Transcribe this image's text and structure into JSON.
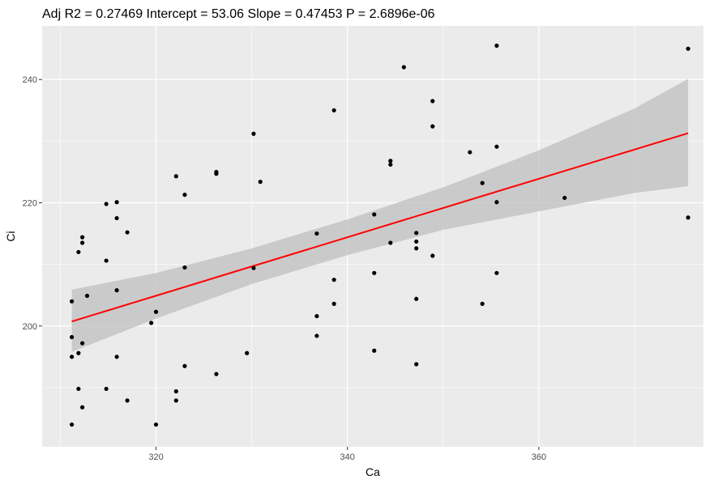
{
  "chart_data": {
    "type": "scatter",
    "title": "Adj R2 =  0.27469 Intercept = 53.06  Slope = 0.47453  P = 2.6896e-06",
    "xlabel": "Ca",
    "ylabel": "Ci",
    "xlim": [
      308.1,
      377.2
    ],
    "ylim": [
      180.4,
      248.7
    ],
    "x_ticks": [
      320,
      340,
      360
    ],
    "y_ticks": [
      200,
      220,
      240
    ],
    "grid": true,
    "background": "#ebebeb",
    "points": [
      {
        "x": 311.2,
        "y": 204.0
      },
      {
        "x": 311.2,
        "y": 198.2
      },
      {
        "x": 311.2,
        "y": 195.0
      },
      {
        "x": 311.2,
        "y": 184.0
      },
      {
        "x": 311.9,
        "y": 212.0
      },
      {
        "x": 311.9,
        "y": 195.6
      },
      {
        "x": 311.9,
        "y": 189.8
      },
      {
        "x": 312.3,
        "y": 214.4
      },
      {
        "x": 312.3,
        "y": 213.5
      },
      {
        "x": 312.3,
        "y": 197.2
      },
      {
        "x": 312.3,
        "y": 186.8
      },
      {
        "x": 312.8,
        "y": 204.9
      },
      {
        "x": 314.8,
        "y": 219.8
      },
      {
        "x": 314.8,
        "y": 210.6
      },
      {
        "x": 314.8,
        "y": 189.8
      },
      {
        "x": 315.9,
        "y": 220.1
      },
      {
        "x": 315.9,
        "y": 217.5
      },
      {
        "x": 315.9,
        "y": 205.8
      },
      {
        "x": 315.9,
        "y": 195.0
      },
      {
        "x": 317.0,
        "y": 215.2
      },
      {
        "x": 317.0,
        "y": 187.9
      },
      {
        "x": 319.5,
        "y": 200.5
      },
      {
        "x": 320.0,
        "y": 202.3
      },
      {
        "x": 320.0,
        "y": 184.0
      },
      {
        "x": 322.1,
        "y": 224.3
      },
      {
        "x": 322.1,
        "y": 189.4
      },
      {
        "x": 322.1,
        "y": 187.9
      },
      {
        "x": 323.0,
        "y": 221.3
      },
      {
        "x": 323.0,
        "y": 209.5
      },
      {
        "x": 323.0,
        "y": 193.5
      },
      {
        "x": 326.3,
        "y": 225.0
      },
      {
        "x": 326.3,
        "y": 224.7
      },
      {
        "x": 326.3,
        "y": 192.2
      },
      {
        "x": 329.5,
        "y": 195.6
      },
      {
        "x": 330.2,
        "y": 231.2
      },
      {
        "x": 330.2,
        "y": 209.4
      },
      {
        "x": 330.9,
        "y": 223.4
      },
      {
        "x": 336.8,
        "y": 215.0
      },
      {
        "x": 336.8,
        "y": 201.6
      },
      {
        "x": 336.8,
        "y": 198.4
      },
      {
        "x": 338.6,
        "y": 235.0
      },
      {
        "x": 338.6,
        "y": 207.5
      },
      {
        "x": 338.6,
        "y": 203.6
      },
      {
        "x": 342.8,
        "y": 218.1
      },
      {
        "x": 342.8,
        "y": 208.6
      },
      {
        "x": 342.8,
        "y": 196.0
      },
      {
        "x": 344.5,
        "y": 226.8
      },
      {
        "x": 344.5,
        "y": 226.2
      },
      {
        "x": 344.5,
        "y": 213.5
      },
      {
        "x": 345.9,
        "y": 242.0
      },
      {
        "x": 347.2,
        "y": 215.1
      },
      {
        "x": 347.2,
        "y": 213.7
      },
      {
        "x": 347.2,
        "y": 212.6
      },
      {
        "x": 347.2,
        "y": 204.4
      },
      {
        "x": 347.2,
        "y": 193.8
      },
      {
        "x": 348.9,
        "y": 236.5
      },
      {
        "x": 348.9,
        "y": 232.4
      },
      {
        "x": 348.9,
        "y": 211.4
      },
      {
        "x": 352.8,
        "y": 228.2
      },
      {
        "x": 354.1,
        "y": 223.2
      },
      {
        "x": 354.1,
        "y": 203.6
      },
      {
        "x": 355.6,
        "y": 245.5
      },
      {
        "x": 355.6,
        "y": 229.1
      },
      {
        "x": 355.6,
        "y": 220.1
      },
      {
        "x": 355.6,
        "y": 208.6
      },
      {
        "x": 362.7,
        "y": 220.8
      },
      {
        "x": 375.6,
        "y": 245.0
      },
      {
        "x": 375.6,
        "y": 217.6
      }
    ],
    "fit": {
      "intercept": 53.06,
      "slope": 0.47453,
      "x_range": [
        311.2,
        375.6
      ],
      "line_color": "#ff0000",
      "ribbon_color": "#bfbfbf",
      "ribbon": {
        "x": [
          311.2,
          320,
          330,
          340,
          350,
          360,
          370,
          375.6
        ],
        "lower": [
          195.8,
          201.2,
          206.8,
          211.5,
          215.6,
          218.6,
          221.6,
          222.7
        ],
        "upper": [
          205.9,
          208.6,
          212.6,
          217.3,
          222.5,
          228.5,
          235.3,
          240.1
        ]
      }
    }
  }
}
